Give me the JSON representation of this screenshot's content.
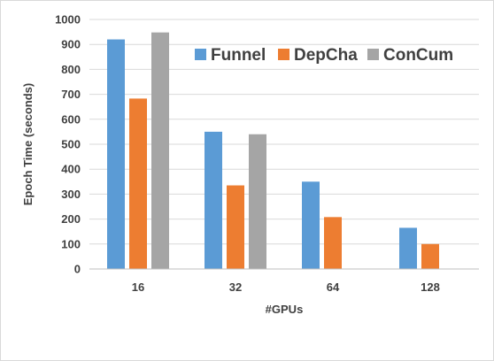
{
  "chart_data": {
    "type": "bar",
    "title": "",
    "xlabel": "#GPUs",
    "ylabel": "Epoch Time (seconds)",
    "categories": [
      "16",
      "32",
      "64",
      "128"
    ],
    "ylim": [
      0,
      1000
    ],
    "yticks": [
      0,
      100,
      200,
      300,
      400,
      500,
      600,
      700,
      800,
      900,
      1000
    ],
    "grid": true,
    "legend_position": "top-right",
    "series": [
      {
        "name": "Funnel",
        "color": "#5b9bd5",
        "values": [
          920,
          550,
          350,
          165
        ]
      },
      {
        "name": "DepCha",
        "color": "#ed7d31",
        "values": [
          683,
          335,
          208,
          100
        ]
      },
      {
        "name": "ConCum",
        "color": "#a5a5a5",
        "values": [
          948,
          540,
          null,
          null
        ]
      }
    ]
  }
}
